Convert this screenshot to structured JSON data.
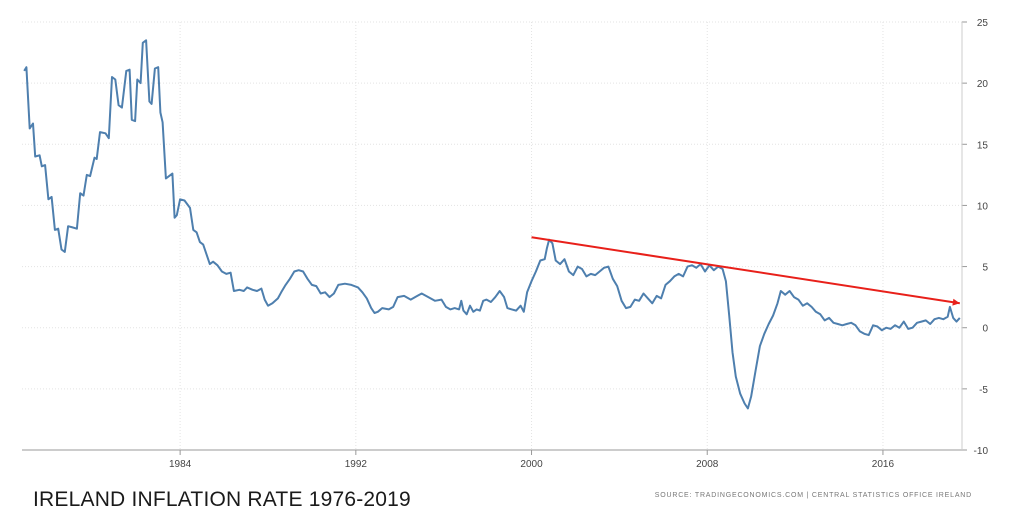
{
  "chart_data": {
    "type": "line",
    "title": "IRELAND INFLATION RATE 1976-2019",
    "source": "SOURCE: TRADINGECONOMICS.COM | CENTRAL STATISTICS OFFICE IRELAND",
    "xlim": [
      1976.8,
      2019.6
    ],
    "ylim": [
      -10,
      25
    ],
    "x_ticks": [
      1984,
      1992,
      2000,
      2008,
      2016
    ],
    "y_ticks": [
      25,
      20,
      15,
      10,
      5,
      0,
      -5,
      -10
    ],
    "grid": true,
    "series": [
      {
        "color": "#4e7fae",
        "points": [
          [
            1976.9,
            21
          ],
          [
            1977.0,
            21.3
          ],
          [
            1977.15,
            16.3
          ],
          [
            1977.3,
            16.7
          ],
          [
            1977.4,
            14
          ],
          [
            1977.6,
            14.1
          ],
          [
            1977.7,
            13.2
          ],
          [
            1977.85,
            13.3
          ],
          [
            1978.0,
            10.5
          ],
          [
            1978.15,
            10.7
          ],
          [
            1978.3,
            8
          ],
          [
            1978.45,
            8.1
          ],
          [
            1978.6,
            6.4
          ],
          [
            1978.75,
            6.2
          ],
          [
            1978.9,
            8.3
          ],
          [
            1979.1,
            8.2
          ],
          [
            1979.3,
            8.1
          ],
          [
            1979.45,
            11
          ],
          [
            1979.6,
            10.8
          ],
          [
            1979.75,
            12.5
          ],
          [
            1979.9,
            12.4
          ],
          [
            1980.1,
            13.9
          ],
          [
            1980.2,
            13.8
          ],
          [
            1980.35,
            16
          ],
          [
            1980.6,
            15.9
          ],
          [
            1980.75,
            15.5
          ],
          [
            1980.9,
            20.5
          ],
          [
            1981.05,
            20.3
          ],
          [
            1981.2,
            18.2
          ],
          [
            1981.35,
            18
          ],
          [
            1981.55,
            21
          ],
          [
            1981.7,
            21.1
          ],
          [
            1981.8,
            17
          ],
          [
            1981.95,
            16.9
          ],
          [
            1982.05,
            20.3
          ],
          [
            1982.2,
            20
          ],
          [
            1982.3,
            23.3
          ],
          [
            1982.45,
            23.5
          ],
          [
            1982.6,
            18.5
          ],
          [
            1982.7,
            18.3
          ],
          [
            1982.85,
            21.2
          ],
          [
            1983.0,
            21.3
          ],
          [
            1983.1,
            17.6
          ],
          [
            1983.2,
            16.8
          ],
          [
            1983.35,
            12.2
          ],
          [
            1983.5,
            12.4
          ],
          [
            1983.65,
            12.6
          ],
          [
            1983.75,
            9
          ],
          [
            1983.85,
            9.2
          ],
          [
            1984.0,
            10.5
          ],
          [
            1984.2,
            10.4
          ],
          [
            1984.45,
            9.8
          ],
          [
            1984.6,
            8
          ],
          [
            1984.75,
            7.8
          ],
          [
            1984.9,
            7
          ],
          [
            1985.05,
            6.8
          ],
          [
            1985.2,
            6
          ],
          [
            1985.35,
            5.2
          ],
          [
            1985.5,
            5.4
          ],
          [
            1985.7,
            5.1
          ],
          [
            1985.9,
            4.6
          ],
          [
            1986.1,
            4.4
          ],
          [
            1986.3,
            4.5
          ],
          [
            1986.45,
            3
          ],
          [
            1986.7,
            3.1
          ],
          [
            1986.9,
            3
          ],
          [
            1987.05,
            3.3
          ],
          [
            1987.3,
            3.1
          ],
          [
            1987.5,
            3
          ],
          [
            1987.7,
            3.2
          ],
          [
            1987.85,
            2.3
          ],
          [
            1988.0,
            1.8
          ],
          [
            1988.2,
            2
          ],
          [
            1988.45,
            2.4
          ],
          [
            1988.6,
            2.9
          ],
          [
            1988.8,
            3.5
          ],
          [
            1989.0,
            4
          ],
          [
            1989.2,
            4.6
          ],
          [
            1989.4,
            4.7
          ],
          [
            1989.6,
            4.6
          ],
          [
            1989.8,
            4
          ],
          [
            1990.0,
            3.5
          ],
          [
            1990.2,
            3.4
          ],
          [
            1990.4,
            2.8
          ],
          [
            1990.6,
            2.9
          ],
          [
            1990.8,
            2.5
          ],
          [
            1991.0,
            2.8
          ],
          [
            1991.2,
            3.5
          ],
          [
            1991.5,
            3.6
          ],
          [
            1991.8,
            3.5
          ],
          [
            1992.1,
            3.3
          ],
          [
            1992.3,
            2.9
          ],
          [
            1992.5,
            2.4
          ],
          [
            1992.7,
            1.6
          ],
          [
            1992.85,
            1.2
          ],
          [
            1993.0,
            1.3
          ],
          [
            1993.2,
            1.6
          ],
          [
            1993.5,
            1.5
          ],
          [
            1993.7,
            1.7
          ],
          [
            1993.9,
            2.5
          ],
          [
            1994.2,
            2.6
          ],
          [
            1994.5,
            2.3
          ],
          [
            1994.8,
            2.6
          ],
          [
            1995.0,
            2.8
          ],
          [
            1995.3,
            2.5
          ],
          [
            1995.6,
            2.2
          ],
          [
            1995.9,
            2.3
          ],
          [
            1996.1,
            1.7
          ],
          [
            1996.3,
            1.5
          ],
          [
            1996.5,
            1.6
          ],
          [
            1996.7,
            1.5
          ],
          [
            1996.8,
            2.2
          ],
          [
            1996.9,
            1.4
          ],
          [
            1997.05,
            1.1
          ],
          [
            1997.2,
            1.8
          ],
          [
            1997.35,
            1.3
          ],
          [
            1997.5,
            1.5
          ],
          [
            1997.65,
            1.4
          ],
          [
            1997.8,
            2.2
          ],
          [
            1997.95,
            2.3
          ],
          [
            1998.15,
            2.1
          ],
          [
            1998.35,
            2.5
          ],
          [
            1998.55,
            3
          ],
          [
            1998.75,
            2.5
          ],
          [
            1998.9,
            1.6
          ],
          [
            1999.1,
            1.5
          ],
          [
            1999.3,
            1.4
          ],
          [
            1999.5,
            1.8
          ],
          [
            1999.65,
            1.3
          ],
          [
            1999.8,
            2.9
          ],
          [
            2000.0,
            3.8
          ],
          [
            2000.2,
            4.6
          ],
          [
            2000.4,
            5.5
          ],
          [
            2000.6,
            5.6
          ],
          [
            2000.7,
            6.5
          ],
          [
            2000.8,
            7.2
          ],
          [
            2000.95,
            6.9
          ],
          [
            2001.1,
            5.5
          ],
          [
            2001.3,
            5.2
          ],
          [
            2001.5,
            5.6
          ],
          [
            2001.7,
            4.6
          ],
          [
            2001.9,
            4.3
          ],
          [
            2002.1,
            5
          ],
          [
            2002.3,
            4.8
          ],
          [
            2002.5,
            4.2
          ],
          [
            2002.7,
            4.4
          ],
          [
            2002.9,
            4.3
          ],
          [
            2003.1,
            4.6
          ],
          [
            2003.3,
            4.9
          ],
          [
            2003.5,
            5
          ],
          [
            2003.7,
            4
          ],
          [
            2003.9,
            3.4
          ],
          [
            2004.1,
            2.2
          ],
          [
            2004.3,
            1.6
          ],
          [
            2004.5,
            1.7
          ],
          [
            2004.7,
            2.3
          ],
          [
            2004.9,
            2.2
          ],
          [
            2005.1,
            2.8
          ],
          [
            2005.3,
            2.4
          ],
          [
            2005.5,
            2
          ],
          [
            2005.7,
            2.6
          ],
          [
            2005.9,
            2.4
          ],
          [
            2006.1,
            3.5
          ],
          [
            2006.3,
            3.8
          ],
          [
            2006.5,
            4.2
          ],
          [
            2006.7,
            4.4
          ],
          [
            2006.9,
            4.2
          ],
          [
            2007.1,
            5
          ],
          [
            2007.3,
            5.1
          ],
          [
            2007.5,
            4.9
          ],
          [
            2007.7,
            5.2
          ],
          [
            2007.9,
            4.6
          ],
          [
            2008.1,
            5.1
          ],
          [
            2008.3,
            4.7
          ],
          [
            2008.5,
            5
          ],
          [
            2008.7,
            4.8
          ],
          [
            2008.85,
            3.8
          ],
          [
            2009.0,
            1
          ],
          [
            2009.15,
            -2
          ],
          [
            2009.3,
            -4
          ],
          [
            2009.5,
            -5.4
          ],
          [
            2009.7,
            -6.2
          ],
          [
            2009.85,
            -6.6
          ],
          [
            2010.0,
            -5.6
          ],
          [
            2010.2,
            -3.5
          ],
          [
            2010.4,
            -1.5
          ],
          [
            2010.6,
            -0.5
          ],
          [
            2010.8,
            0.3
          ],
          [
            2011.0,
            1
          ],
          [
            2011.2,
            2
          ],
          [
            2011.35,
            3
          ],
          [
            2011.55,
            2.7
          ],
          [
            2011.75,
            3
          ],
          [
            2011.95,
            2.5
          ],
          [
            2012.15,
            2.3
          ],
          [
            2012.35,
            1.8
          ],
          [
            2012.55,
            2
          ],
          [
            2012.75,
            1.7
          ],
          [
            2012.95,
            1.3
          ],
          [
            2013.15,
            1.1
          ],
          [
            2013.35,
            0.6
          ],
          [
            2013.55,
            0.8
          ],
          [
            2013.75,
            0.4
          ],
          [
            2013.95,
            0.3
          ],
          [
            2014.15,
            0.2
          ],
          [
            2014.35,
            0.3
          ],
          [
            2014.55,
            0.4
          ],
          [
            2014.75,
            0.2
          ],
          [
            2014.95,
            -0.3
          ],
          [
            2015.15,
            -0.5
          ],
          [
            2015.35,
            -0.6
          ],
          [
            2015.55,
            0.2
          ],
          [
            2015.75,
            0.1
          ],
          [
            2015.95,
            -0.2
          ],
          [
            2016.15,
            0
          ],
          [
            2016.35,
            -0.1
          ],
          [
            2016.55,
            0.2
          ],
          [
            2016.75,
            0
          ],
          [
            2016.95,
            0.5
          ],
          [
            2017.15,
            -0.1
          ],
          [
            2017.35,
            0
          ],
          [
            2017.55,
            0.4
          ],
          [
            2017.75,
            0.5
          ],
          [
            2017.95,
            0.6
          ],
          [
            2018.15,
            0.3
          ],
          [
            2018.35,
            0.7
          ],
          [
            2018.55,
            0.8
          ],
          [
            2018.75,
            0.7
          ],
          [
            2018.95,
            0.9
          ],
          [
            2019.05,
            1.7
          ],
          [
            2019.2,
            0.8
          ],
          [
            2019.35,
            0.5
          ],
          [
            2019.5,
            0.8
          ]
        ]
      }
    ],
    "annotations": [
      {
        "type": "trendline",
        "color": "#e8201a",
        "x1": 2000.0,
        "y1": 7.4,
        "x2": 2019.5,
        "y2": 2.0
      }
    ]
  }
}
